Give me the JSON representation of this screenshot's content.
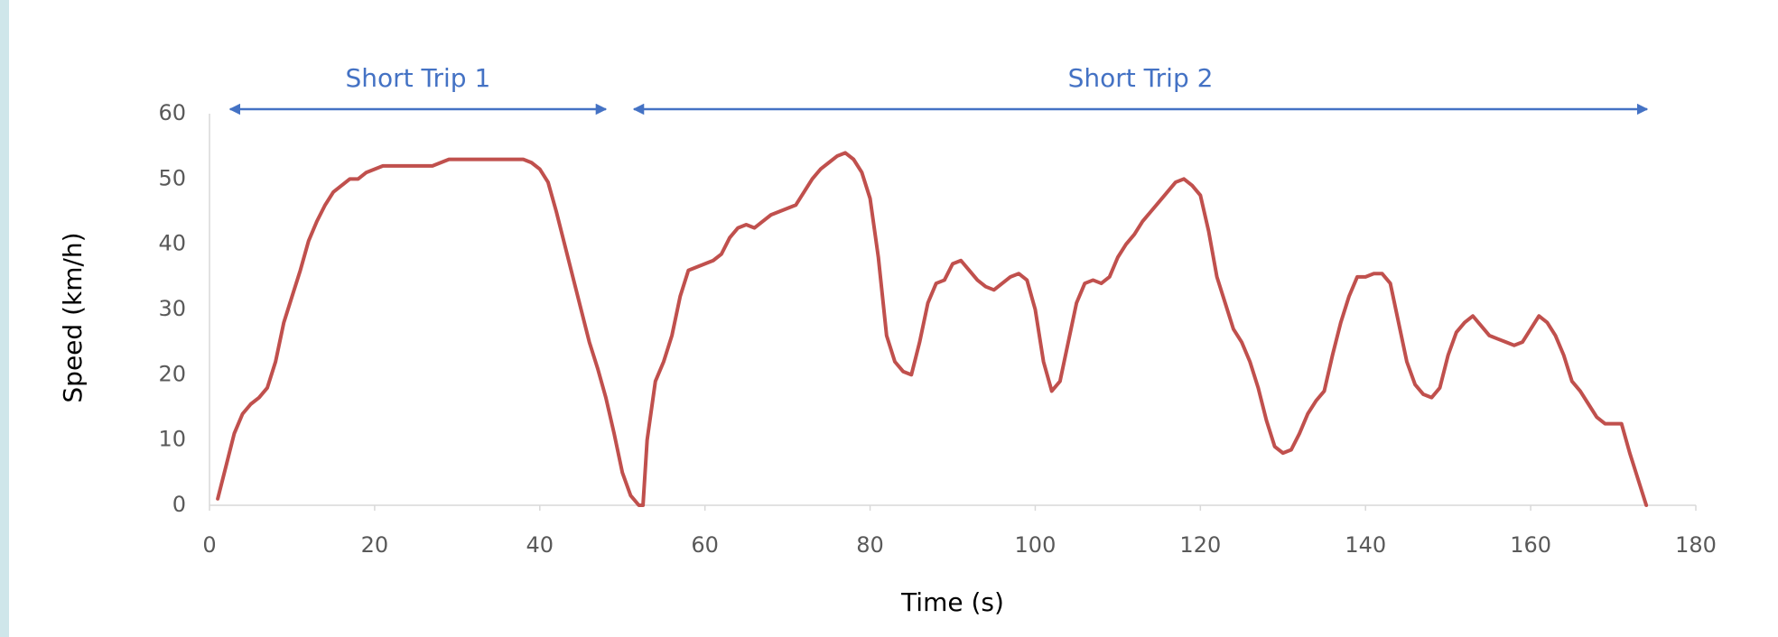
{
  "chart_data": {
    "type": "line",
    "xlabel": "Time (s)",
    "ylabel": "Speed (km/h)",
    "color": "#c0504d",
    "xlim": [
      0,
      180
    ],
    "xticks": [
      0,
      20,
      40,
      60,
      80,
      100,
      120,
      140,
      160,
      180
    ],
    "ylim": [
      0,
      60
    ],
    "yticks": [
      0,
      10,
      20,
      30,
      40,
      50,
      60
    ],
    "grid": false,
    "annotations": [
      {
        "text": "Short Trip 1",
        "x_start": 2.5,
        "x_end": 48
      },
      {
        "text": "Short Trip 2",
        "x_start": 51.4,
        "x_end": 174.1
      }
    ],
    "x": [
      1,
      2,
      3,
      4,
      5,
      6,
      7,
      8,
      9,
      10,
      11,
      12,
      13,
      14,
      15,
      16,
      17,
      18,
      19,
      20,
      21,
      22,
      24,
      26,
      27,
      28,
      29,
      30,
      35,
      38,
      39,
      40,
      41,
      42,
      43,
      44,
      45,
      46,
      47,
      48,
      49,
      50,
      51,
      52,
      52.5,
      53,
      54,
      55,
      56,
      57,
      58,
      59,
      60,
      61,
      62,
      63,
      64,
      65,
      66,
      67,
      68,
      69,
      70,
      71,
      72,
      73,
      74,
      75,
      76,
      77,
      78,
      79,
      80,
      81,
      82,
      83,
      84,
      85,
      86,
      87,
      88,
      89,
      90,
      91,
      92,
      93,
      94,
      95,
      96,
      97,
      98,
      99,
      100,
      101,
      102,
      103,
      104,
      105,
      106,
      107,
      108,
      109,
      110,
      111,
      112,
      113,
      114,
      115,
      116,
      117,
      118,
      119,
      120,
      121,
      122,
      123,
      124,
      125,
      126,
      127,
      128,
      129,
      130,
      131,
      132,
      133,
      134,
      135,
      136,
      137,
      138,
      139,
      140,
      141,
      142,
      143,
      144,
      145,
      146,
      147,
      148,
      149,
      150,
      151,
      152,
      153,
      154,
      155,
      156,
      157,
      158,
      159,
      160,
      161,
      162,
      163,
      164,
      165,
      166,
      167,
      168,
      169,
      170,
      171,
      172,
      173,
      174
    ],
    "values": [
      1,
      6,
      11,
      14,
      15.5,
      16.5,
      18,
      22,
      28,
      32,
      36,
      40.5,
      43.5,
      46,
      48,
      49,
      50,
      50,
      51,
      51.5,
      52,
      52,
      52,
      52,
      52,
      52.5,
      53,
      53,
      53,
      53,
      52.5,
      51.5,
      49.5,
      45,
      40,
      35,
      30,
      25,
      21,
      16.5,
      11,
      5,
      1.5,
      0,
      0,
      10,
      19,
      22,
      26,
      32,
      36,
      36.5,
      37,
      37.5,
      38.5,
      41,
      42.5,
      43,
      42.5,
      43.5,
      44.5,
      45,
      45.5,
      46,
      48,
      50,
      51.5,
      52.5,
      53.5,
      54,
      53,
      51,
      47,
      38,
      26,
      22,
      20.5,
      20,
      25,
      31,
      34,
      34.5,
      37,
      37.5,
      36,
      34.5,
      33.5,
      33,
      34,
      35,
      35.5,
      34.5,
      30,
      22,
      17.5,
      19,
      25,
      31,
      34,
      34.5,
      34,
      35,
      38,
      40,
      41.5,
      43.5,
      45,
      46.5,
      48,
      49.5,
      50,
      49,
      47.5,
      42,
      35,
      31,
      27,
      25,
      22,
      18,
      13,
      9,
      8,
      8.5,
      11,
      14,
      16,
      17.5,
      23,
      28,
      32,
      35,
      35,
      35.5,
      35.5,
      34,
      28,
      22,
      18.5,
      17,
      16.5,
      18,
      23,
      26.5,
      28,
      29,
      27.5,
      26,
      25.5,
      25,
      24.5,
      25,
      27,
      29,
      28,
      26,
      23,
      19,
      17.5,
      15.5,
      13.5,
      12.5,
      12.5,
      12.5,
      8,
      4,
      0
    ]
  }
}
